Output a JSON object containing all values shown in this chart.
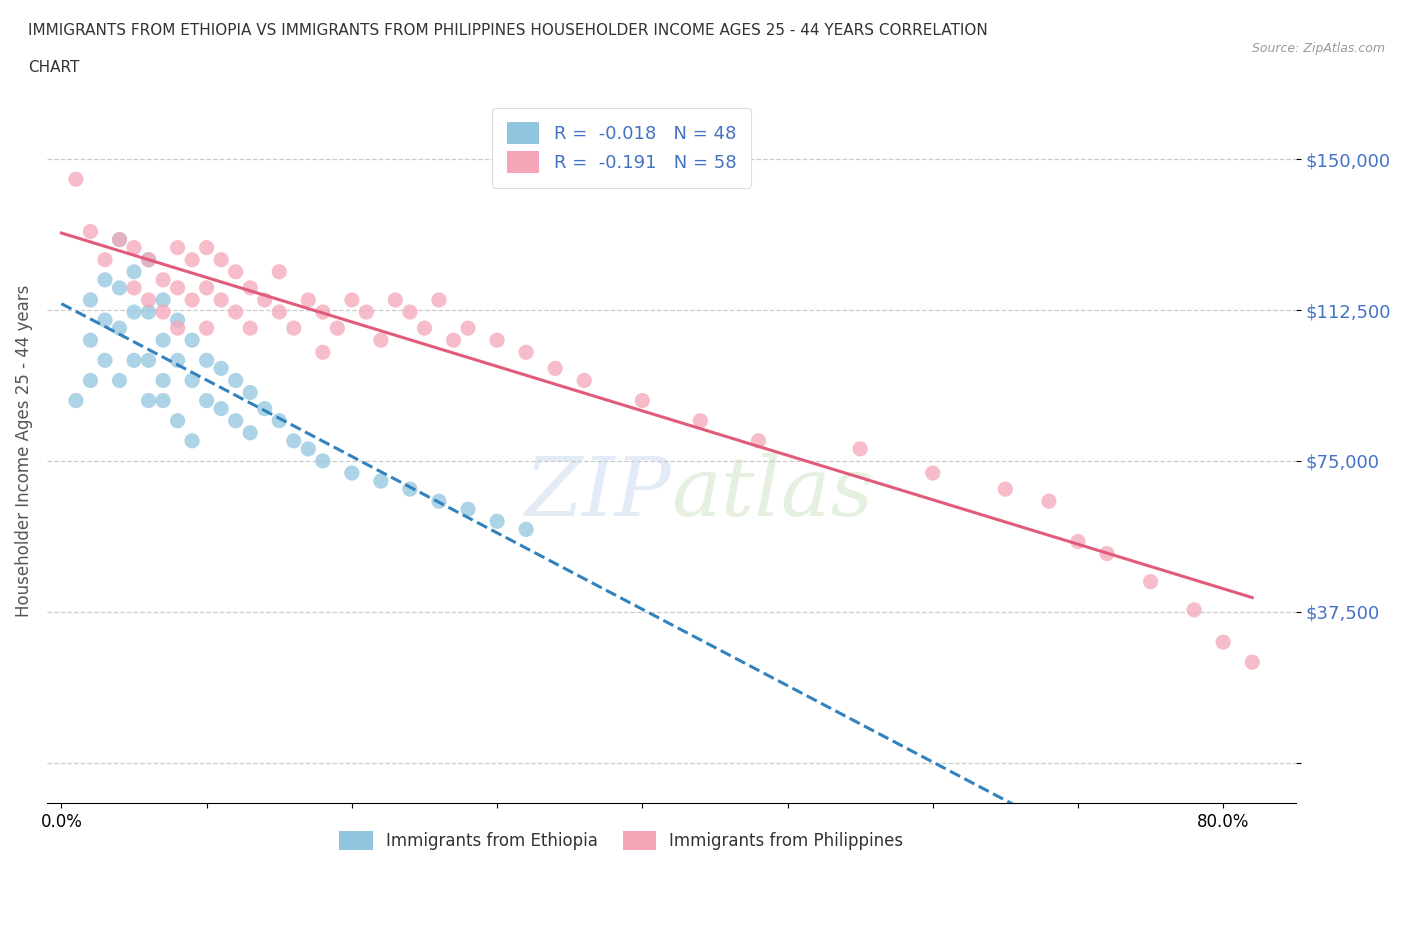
{
  "title_line1": "IMMIGRANTS FROM ETHIOPIA VS IMMIGRANTS FROM PHILIPPINES HOUSEHOLDER INCOME AGES 25 - 44 YEARS CORRELATION",
  "title_line2": "CHART",
  "source_text": "Source: ZipAtlas.com",
  "ylabel": "Householder Income Ages 25 - 44 years",
  "x_tick_positions": [
    0.0,
    0.1,
    0.2,
    0.3,
    0.4,
    0.5,
    0.6,
    0.7,
    0.8
  ],
  "x_tick_labels": [
    "0.0%",
    "",
    "",
    "",
    "",
    "",
    "",
    "",
    "80.0%"
  ],
  "y_ticks": [
    0,
    37500,
    75000,
    112500,
    150000
  ],
  "y_tick_labels": [
    "",
    "$37,500",
    "$75,000",
    "$112,500",
    "$150,000"
  ],
  "xlim": [
    -0.01,
    0.85
  ],
  "ylim": [
    -10000,
    165000
  ],
  "legend_ethiopia_label": "Immigrants from Ethiopia",
  "legend_philippines_label": "Immigrants from Philippines",
  "ethiopia_R": -0.018,
  "ethiopia_N": 48,
  "philippines_R": -0.191,
  "philippines_N": 58,
  "ethiopia_color": "#92c5de",
  "philippines_color": "#f4a6b8",
  "ethiopia_line_color": "#3182bd",
  "philippines_line_color": "#e05c7a",
  "ethiopia_x": [
    0.01,
    0.02,
    0.02,
    0.02,
    0.03,
    0.03,
    0.03,
    0.04,
    0.04,
    0.04,
    0.04,
    0.05,
    0.05,
    0.05,
    0.06,
    0.06,
    0.06,
    0.06,
    0.07,
    0.07,
    0.07,
    0.07,
    0.08,
    0.08,
    0.08,
    0.09,
    0.09,
    0.09,
    0.1,
    0.1,
    0.11,
    0.11,
    0.12,
    0.12,
    0.13,
    0.13,
    0.14,
    0.15,
    0.16,
    0.17,
    0.18,
    0.2,
    0.22,
    0.24,
    0.26,
    0.28,
    0.3,
    0.32
  ],
  "ethiopia_y": [
    90000,
    95000,
    105000,
    115000,
    100000,
    110000,
    120000,
    95000,
    108000,
    118000,
    130000,
    100000,
    112000,
    122000,
    90000,
    100000,
    112000,
    125000,
    95000,
    105000,
    115000,
    90000,
    100000,
    110000,
    85000,
    95000,
    105000,
    80000,
    90000,
    100000,
    88000,
    98000,
    85000,
    95000,
    82000,
    92000,
    88000,
    85000,
    80000,
    78000,
    75000,
    72000,
    70000,
    68000,
    65000,
    63000,
    60000,
    58000
  ],
  "philippines_x": [
    0.01,
    0.02,
    0.03,
    0.04,
    0.05,
    0.05,
    0.06,
    0.06,
    0.07,
    0.07,
    0.08,
    0.08,
    0.08,
    0.09,
    0.09,
    0.1,
    0.1,
    0.1,
    0.11,
    0.11,
    0.12,
    0.12,
    0.13,
    0.13,
    0.14,
    0.15,
    0.15,
    0.16,
    0.17,
    0.18,
    0.18,
    0.19,
    0.2,
    0.21,
    0.22,
    0.23,
    0.24,
    0.25,
    0.26,
    0.27,
    0.28,
    0.3,
    0.32,
    0.34,
    0.36,
    0.4,
    0.44,
    0.48,
    0.55,
    0.6,
    0.65,
    0.68,
    0.7,
    0.72,
    0.75,
    0.78,
    0.8,
    0.82
  ],
  "philippines_y": [
    145000,
    132000,
    125000,
    130000,
    128000,
    118000,
    125000,
    115000,
    120000,
    112000,
    118000,
    128000,
    108000,
    115000,
    125000,
    118000,
    128000,
    108000,
    115000,
    125000,
    112000,
    122000,
    118000,
    108000,
    115000,
    112000,
    122000,
    108000,
    115000,
    112000,
    102000,
    108000,
    115000,
    112000,
    105000,
    115000,
    112000,
    108000,
    115000,
    105000,
    108000,
    105000,
    102000,
    98000,
    95000,
    90000,
    85000,
    80000,
    78000,
    72000,
    68000,
    65000,
    55000,
    52000,
    45000,
    38000,
    30000,
    25000
  ]
}
